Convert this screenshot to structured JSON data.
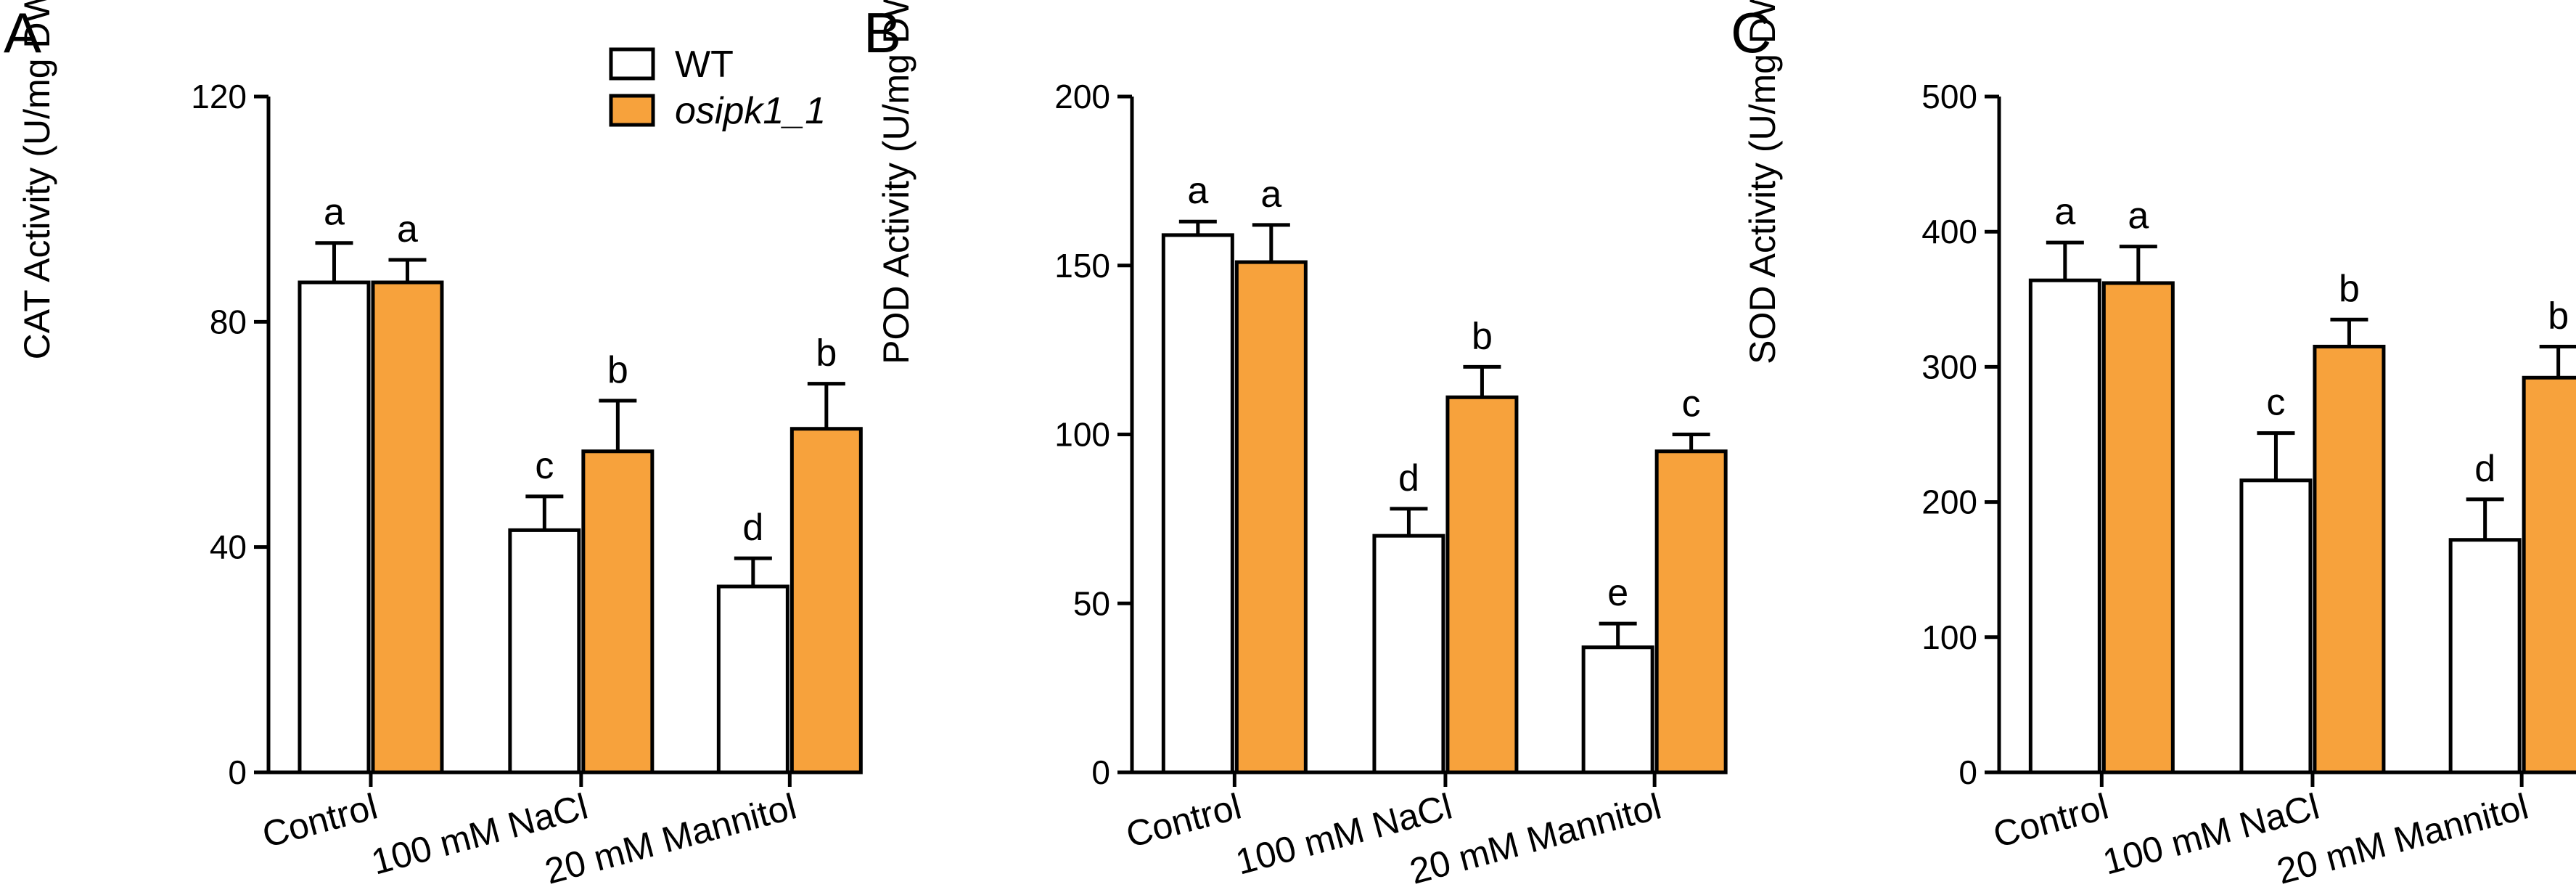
{
  "colors": {
    "wt_fill": "#ffffff",
    "mutant_fill": "#f7a23c",
    "stroke": "#000000"
  },
  "legend": {
    "items": [
      "WT",
      "osipk1_1"
    ]
  },
  "chart_data": [
    {
      "type": "bar",
      "panel": "A",
      "ylabel": "CAT Activity (U/mg DW)",
      "ylim": [
        0,
        120
      ],
      "yticks": [
        0,
        40,
        80,
        120
      ],
      "categories": [
        "Control",
        "100 mM NaCl",
        "20 mM Mannitol"
      ],
      "series": [
        {
          "name": "WT",
          "values": [
            87,
            43,
            33
          ],
          "errors": [
            7,
            6,
            5
          ],
          "letters": [
            "a",
            "c",
            "d"
          ]
        },
        {
          "name": "osipk1_1",
          "values": [
            87,
            57,
            61
          ],
          "errors": [
            4,
            9,
            8
          ],
          "letters": [
            "a",
            "b",
            "b"
          ]
        }
      ]
    },
    {
      "type": "bar",
      "panel": "B",
      "ylabel": "POD Activity (U/mg DW)",
      "ylim": [
        0,
        200
      ],
      "yticks": [
        0,
        50,
        100,
        150,
        200
      ],
      "categories": [
        "Control",
        "100 mM NaCl",
        "20 mM Mannitol"
      ],
      "series": [
        {
          "name": "WT",
          "values": [
            159,
            70,
            37
          ],
          "errors": [
            4,
            8,
            7
          ],
          "letters": [
            "a",
            "d",
            "e"
          ]
        },
        {
          "name": "osipk1_1",
          "values": [
            151,
            111,
            95
          ],
          "errors": [
            11,
            9,
            5
          ],
          "letters": [
            "a",
            "b",
            "c"
          ]
        }
      ]
    },
    {
      "type": "bar",
      "panel": "C",
      "ylabel": "SOD Activity (U/mg DW)",
      "ylim": [
        0,
        500
      ],
      "yticks": [
        0,
        100,
        200,
        300,
        400,
        500
      ],
      "categories": [
        "Control",
        "100 mM NaCl",
        "20 mM Mannitol"
      ],
      "series": [
        {
          "name": "WT",
          "values": [
            364,
            216,
            172
          ],
          "errors": [
            28,
            35,
            30
          ],
          "letters": [
            "a",
            "c",
            "d"
          ]
        },
        {
          "name": "osipk1_1",
          "values": [
            362,
            315,
            292
          ],
          "errors": [
            27,
            20,
            23
          ],
          "letters": [
            "a",
            "b",
            "b"
          ]
        }
      ]
    }
  ]
}
